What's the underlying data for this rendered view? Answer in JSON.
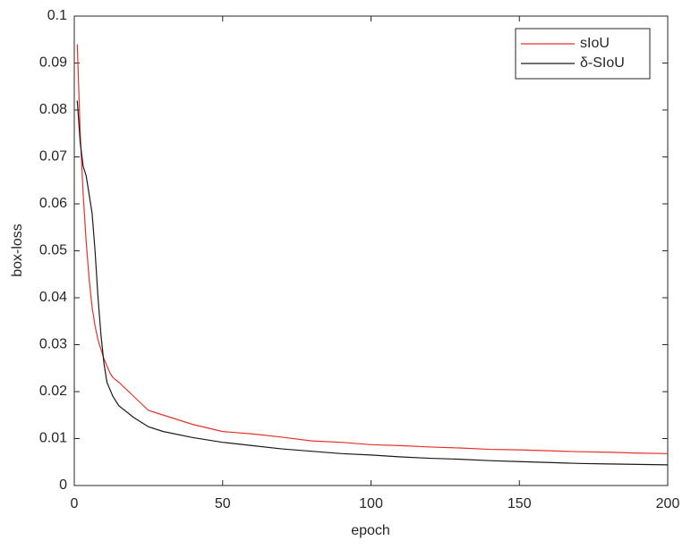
{
  "chart_data": {
    "type": "line",
    "xlabel": "epoch",
    "ylabel": "box-loss",
    "x": [
      1,
      2,
      3,
      4,
      5,
      6,
      7,
      8,
      9,
      10,
      11,
      12,
      13,
      15,
      20,
      25,
      30,
      40,
      50,
      60,
      70,
      80,
      90,
      100,
      110,
      120,
      130,
      140,
      150,
      160,
      170,
      180,
      190,
      200
    ],
    "series": [
      {
        "name": "sIoU",
        "color": "#e8312a",
        "values": [
          0.094,
          0.075,
          0.062,
          0.052,
          0.044,
          0.038,
          0.034,
          0.031,
          0.029,
          0.027,
          0.0255,
          0.024,
          0.023,
          0.022,
          0.019,
          0.016,
          0.015,
          0.013,
          0.0115,
          0.011,
          0.0103,
          0.0095,
          0.0092,
          0.0087,
          0.0085,
          0.0082,
          0.008,
          0.0077,
          0.0076,
          0.0074,
          0.0072,
          0.0071,
          0.0069,
          0.0068
        ]
      },
      {
        "name": "δ-SIoU",
        "color": "#1a1a1a",
        "values": [
          0.082,
          0.073,
          0.068,
          0.066,
          0.062,
          0.058,
          0.05,
          0.04,
          0.032,
          0.026,
          0.022,
          0.0205,
          0.019,
          0.017,
          0.0145,
          0.0125,
          0.0115,
          0.0102,
          0.0092,
          0.0085,
          0.0078,
          0.0073,
          0.0068,
          0.0065,
          0.0061,
          0.0058,
          0.0056,
          0.0053,
          0.0051,
          0.0049,
          0.0047,
          0.0046,
          0.0045,
          0.0044
        ]
      }
    ],
    "xlim": [
      0,
      200
    ],
    "xticks": [
      0,
      50,
      100,
      150,
      200
    ],
    "ylim": [
      0,
      0.1
    ],
    "yticks": [
      0,
      0.01,
      0.02,
      0.03,
      0.04,
      0.05,
      0.06,
      0.07,
      0.08,
      0.09,
      0.1
    ],
    "grid": false,
    "legend": "upper right"
  }
}
